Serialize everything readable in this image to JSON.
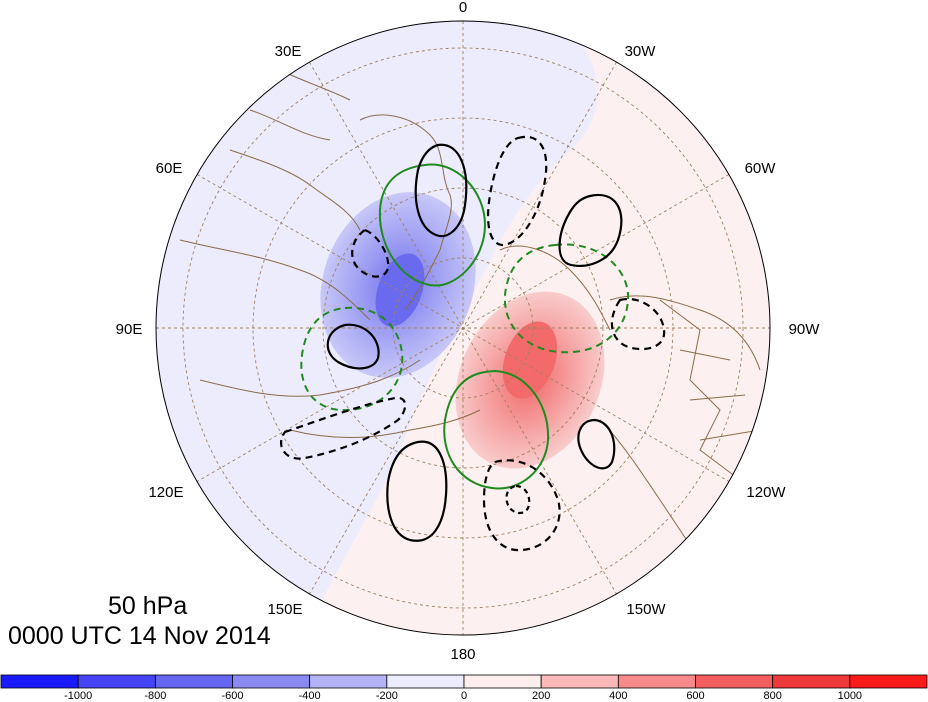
{
  "map": {
    "level_label": "50 hPa",
    "valid_time": "0000 UTC 14 Nov 2014",
    "longitude_labels": [
      "0",
      "30W",
      "60W",
      "90W",
      "120W",
      "150W",
      "180",
      "150E",
      "120E",
      "90E",
      "60E",
      "30E"
    ]
  },
  "colorbar": {
    "ticks": [
      "-1000",
      "-800",
      "-600",
      "-400",
      "-200",
      "0",
      "200",
      "400",
      "600",
      "800",
      "1000"
    ],
    "colors": [
      "#1a1aff",
      "#4545f5",
      "#6565f0",
      "#8a8af2",
      "#b3b3f6",
      "#ececfd",
      "#fdeeee",
      "#fbb9b9",
      "#f78a8a",
      "#f25d5d",
      "#ee3a3a",
      "#ff1a1a"
    ]
  },
  "colors": {
    "coast": "#8b6b4a",
    "grid": "#a08060",
    "green_contour": "#1f8b1f",
    "black_contour": "#000000"
  }
}
